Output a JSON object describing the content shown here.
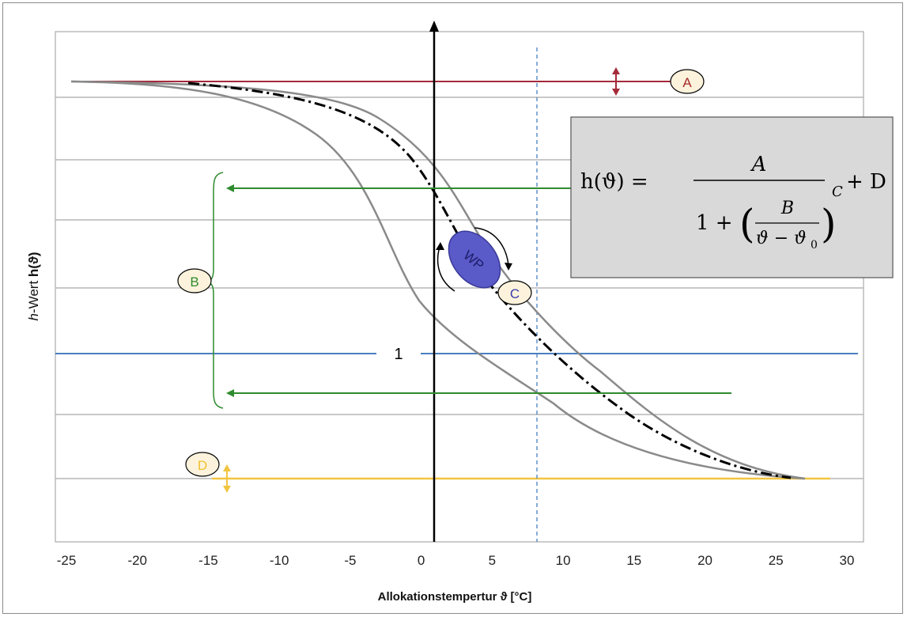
{
  "chart_data": {
    "type": "line",
    "xlabel": "Allokationstempertur ϑ  [°C]",
    "ylabel_italic": "h",
    "ylabel_text": "-Wert ",
    "ylabel_bold": "h(ϑ)",
    "x_ticks": [
      "-25",
      "-20",
      "-15",
      "-10",
      "-5",
      "0",
      "5",
      "10",
      "15",
      "20",
      "25",
      "30"
    ],
    "xlim": [
      -25,
      30
    ],
    "gridlines": true,
    "formula": {
      "lhs": "h(ϑ) =",
      "numerator": "A",
      "one_plus": "1 +",
      "inner_numerator": "B",
      "inner_denominator": "ϑ − ϑ",
      "inner_denominator_sub": "0",
      "exponent": "C",
      "tail": "+ D"
    },
    "reference_line_label": "1",
    "operating_point_label": "WP",
    "badges": [
      {
        "letter": "A",
        "color": "#a52a2a"
      },
      {
        "letter": "B",
        "color": "#2e8b2e"
      },
      {
        "letter": "C",
        "color": "#3b3bb0"
      },
      {
        "letter": "D",
        "color": "#f0c030"
      }
    ],
    "colors": {
      "A": "#a52a3a",
      "B": "#2e8b2e",
      "D": "#f2c540",
      "one_line": "#4a7fc0",
      "curve": "#8a8a8a",
      "center_curve": "#000000",
      "wp_fill": "#5a5ac8",
      "formula_box": "#d9d9d9"
    }
  }
}
